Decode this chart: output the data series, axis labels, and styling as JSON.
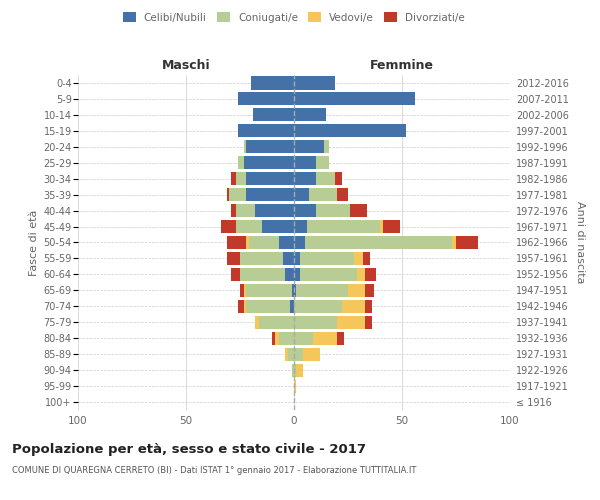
{
  "age_groups": [
    "100+",
    "95-99",
    "90-94",
    "85-89",
    "80-84",
    "75-79",
    "70-74",
    "65-69",
    "60-64",
    "55-59",
    "50-54",
    "45-49",
    "40-44",
    "35-39",
    "30-34",
    "25-29",
    "20-24",
    "15-19",
    "10-14",
    "5-9",
    "0-4"
  ],
  "birth_years": [
    "≤ 1916",
    "1917-1921",
    "1922-1926",
    "1927-1931",
    "1932-1936",
    "1937-1941",
    "1942-1946",
    "1947-1951",
    "1952-1956",
    "1957-1961",
    "1962-1966",
    "1967-1971",
    "1972-1976",
    "1977-1981",
    "1982-1986",
    "1987-1991",
    "1992-1996",
    "1997-2001",
    "2002-2006",
    "2007-2011",
    "2012-2016"
  ],
  "maschi": {
    "celibi": [
      0,
      0,
      0,
      0,
      0,
      0,
      2,
      1,
      4,
      5,
      7,
      15,
      18,
      22,
      22,
      23,
      22,
      26,
      19,
      26,
      20
    ],
    "coniugati": [
      0,
      0,
      1,
      3,
      7,
      16,
      20,
      21,
      21,
      20,
      14,
      12,
      9,
      8,
      5,
      3,
      1,
      0,
      0,
      0,
      0
    ],
    "vedovi": [
      0,
      0,
      0,
      1,
      2,
      2,
      1,
      1,
      0,
      0,
      1,
      0,
      0,
      0,
      0,
      0,
      0,
      0,
      0,
      0,
      0
    ],
    "divorziati": [
      0,
      0,
      0,
      0,
      1,
      0,
      3,
      2,
      4,
      6,
      9,
      7,
      2,
      1,
      2,
      0,
      0,
      0,
      0,
      0,
      0
    ]
  },
  "femmine": {
    "nubili": [
      0,
      0,
      0,
      0,
      0,
      0,
      0,
      1,
      3,
      3,
      5,
      6,
      10,
      7,
      10,
      10,
      14,
      52,
      15,
      56,
      19
    ],
    "coniugate": [
      0,
      0,
      1,
      4,
      9,
      20,
      22,
      24,
      26,
      25,
      68,
      34,
      16,
      13,
      9,
      6,
      2,
      0,
      0,
      0,
      0
    ],
    "vedove": [
      0,
      1,
      3,
      8,
      11,
      13,
      11,
      8,
      4,
      4,
      2,
      1,
      0,
      0,
      0,
      0,
      0,
      0,
      0,
      0,
      0
    ],
    "divorziate": [
      0,
      0,
      0,
      0,
      3,
      3,
      3,
      4,
      5,
      3,
      10,
      8,
      8,
      5,
      3,
      0,
      0,
      0,
      0,
      0,
      0
    ]
  },
  "colors": {
    "celibi": "#4472a8",
    "coniugati": "#b8cc96",
    "vedovi": "#f5c65a",
    "divorziati": "#c0392b"
  },
  "xlim": 100,
  "title": "Popolazione per età, sesso e stato civile - 2017",
  "subtitle": "COMUNE DI QUAREGNA CERRETO (BI) - Dati ISTAT 1° gennaio 2017 - Elaborazione TUTTITALIA.IT",
  "ylabel_left": "Fasce di età",
  "ylabel_right": "Anni di nascita",
  "xlabel_maschi": "Maschi",
  "xlabel_femmine": "Femmine",
  "bg_color": "#ffffff",
  "grid_color": "#cccccc",
  "text_color": "#666666"
}
